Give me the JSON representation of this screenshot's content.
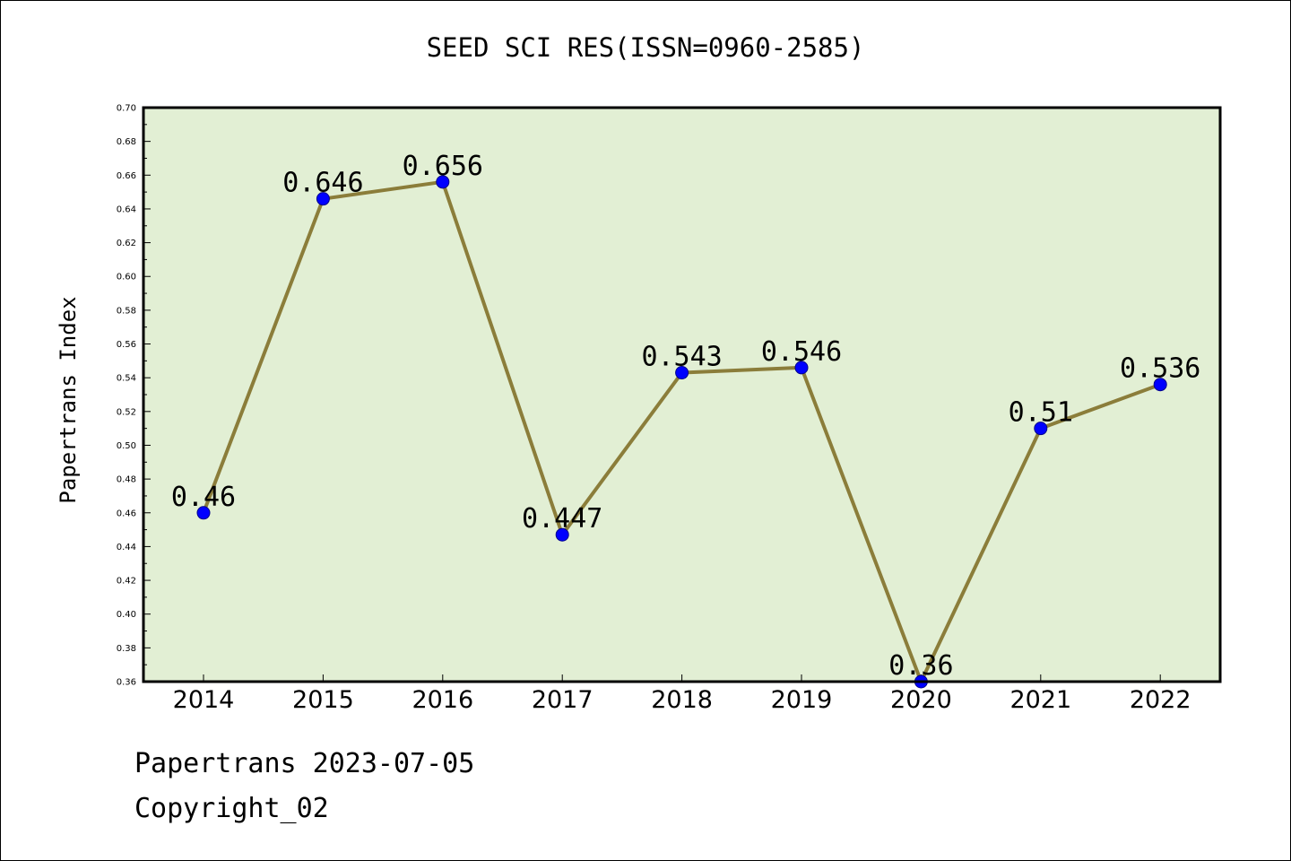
{
  "chart_data": {
    "type": "line",
    "title": "SEED SCI RES(ISSN=0960-2585)",
    "xlabel": "",
    "ylabel": "Papertrans Index",
    "x": [
      "2014",
      "2015",
      "2016",
      "2017",
      "2018",
      "2019",
      "2020",
      "2021",
      "2022"
    ],
    "series": [
      {
        "values": [
          0.46,
          0.646,
          0.656,
          0.447,
          0.543,
          0.546,
          0.36,
          0.51,
          0.536
        ],
        "labels": [
          "0.46",
          "0.646",
          "0.656",
          "0.447",
          "0.543",
          "0.546",
          "0.36",
          "0.51",
          "0.536"
        ]
      }
    ],
    "ylim": [
      0.36,
      0.7
    ],
    "yticks": [
      "0.36",
      "0.38",
      "0.40",
      "0.42",
      "0.44",
      "0.46",
      "0.48",
      "0.50",
      "0.52",
      "0.54",
      "0.56",
      "0.58",
      "0.60",
      "0.62",
      "0.64",
      "0.66",
      "0.68",
      "0.70"
    ],
    "grid": false,
    "colors": {
      "plot_background": "#e2efd4",
      "line": "#8b7d3a",
      "marker_fill": "#0000ff",
      "marker_edge": "#00008b",
      "axis": "#000000"
    }
  },
  "footer": {
    "date_line": "Papertrans 2023-07-05",
    "copyright_line": "Copyright_02"
  }
}
